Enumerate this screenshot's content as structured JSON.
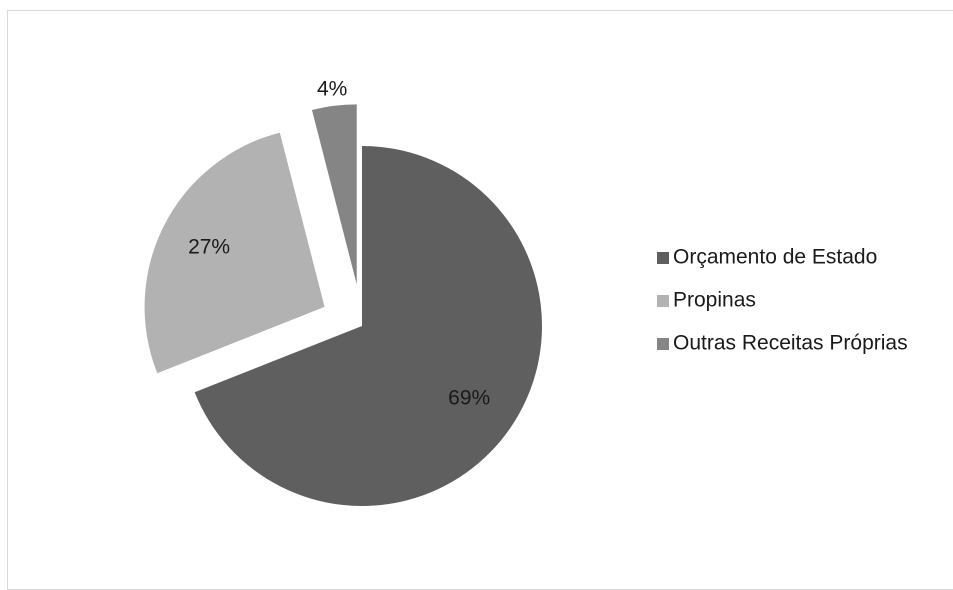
{
  "chart_data": {
    "type": "pie",
    "title": "",
    "legend_position": "right",
    "slices": [
      {
        "name": "Orçamento de Estado",
        "value": 69,
        "label": "69%",
        "color": "#5f5f5f",
        "exploded": false
      },
      {
        "name": "Propinas",
        "value": 27,
        "label": "27%",
        "color": "#b2b2b2",
        "exploded": true
      },
      {
        "name": "Outras Receitas Próprias",
        "value": 4,
        "label": "4%",
        "color": "#858585",
        "exploded": true
      }
    ]
  }
}
